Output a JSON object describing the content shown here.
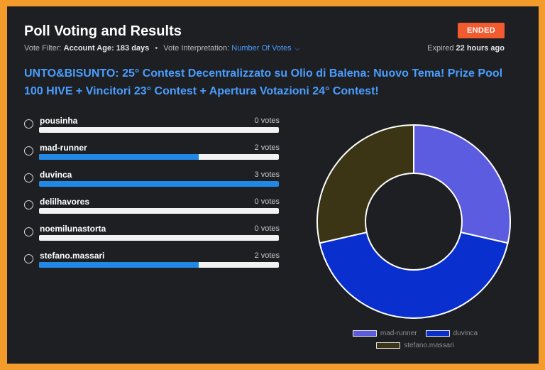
{
  "header": {
    "title": "Poll Voting and Results",
    "status": "ENDED",
    "vote_filter_label": "Vote Filter:",
    "vote_filter_value": "Account Age: 183 days",
    "interpretation_label": "Vote Interpretation:",
    "interpretation_value": "Number Of Votes",
    "expired_label": "Expired",
    "expired_value": "22 hours ago"
  },
  "question": "UNTO&BISUNTO: 25° Contest Decentralizzato su Olio di Balena: Nuovo Tema! Prize Pool 100 HIVE + Vincitori 23° Contest + Apertura Votazioni 24° Contest!",
  "options": [
    {
      "name": "pousinha",
      "votes_label": "0 votes",
      "fraction": 0
    },
    {
      "name": "mad-runner",
      "votes_label": "2 votes",
      "fraction": 0.667
    },
    {
      "name": "duvinca",
      "votes_label": "3 votes",
      "fraction": 1
    },
    {
      "name": "delilhavores",
      "votes_label": "0 votes",
      "fraction": 0
    },
    {
      "name": "noemilunastorta",
      "votes_label": "0 votes",
      "fraction": 0
    },
    {
      "name": "stefano.massari",
      "votes_label": "2 votes",
      "fraction": 0.667
    }
  ],
  "chart_data": {
    "type": "pie",
    "categories": [
      "mad-runner",
      "duvinca",
      "stefano.massari"
    ],
    "values": [
      2,
      3,
      2
    ],
    "colors": [
      "#5c5ce0",
      "#0a2fcf",
      "#3b3515"
    ],
    "legend": "bottom"
  },
  "colors": {
    "accent": "#4a9eff",
    "status": "#f25a2f",
    "bar": "#2188e6",
    "frame": "#f39c2c",
    "panel": "#1e1f23"
  },
  "icons": {
    "interpretation_dropdown": "chevron-down-icon",
    "option_radio": "radio-icon"
  }
}
